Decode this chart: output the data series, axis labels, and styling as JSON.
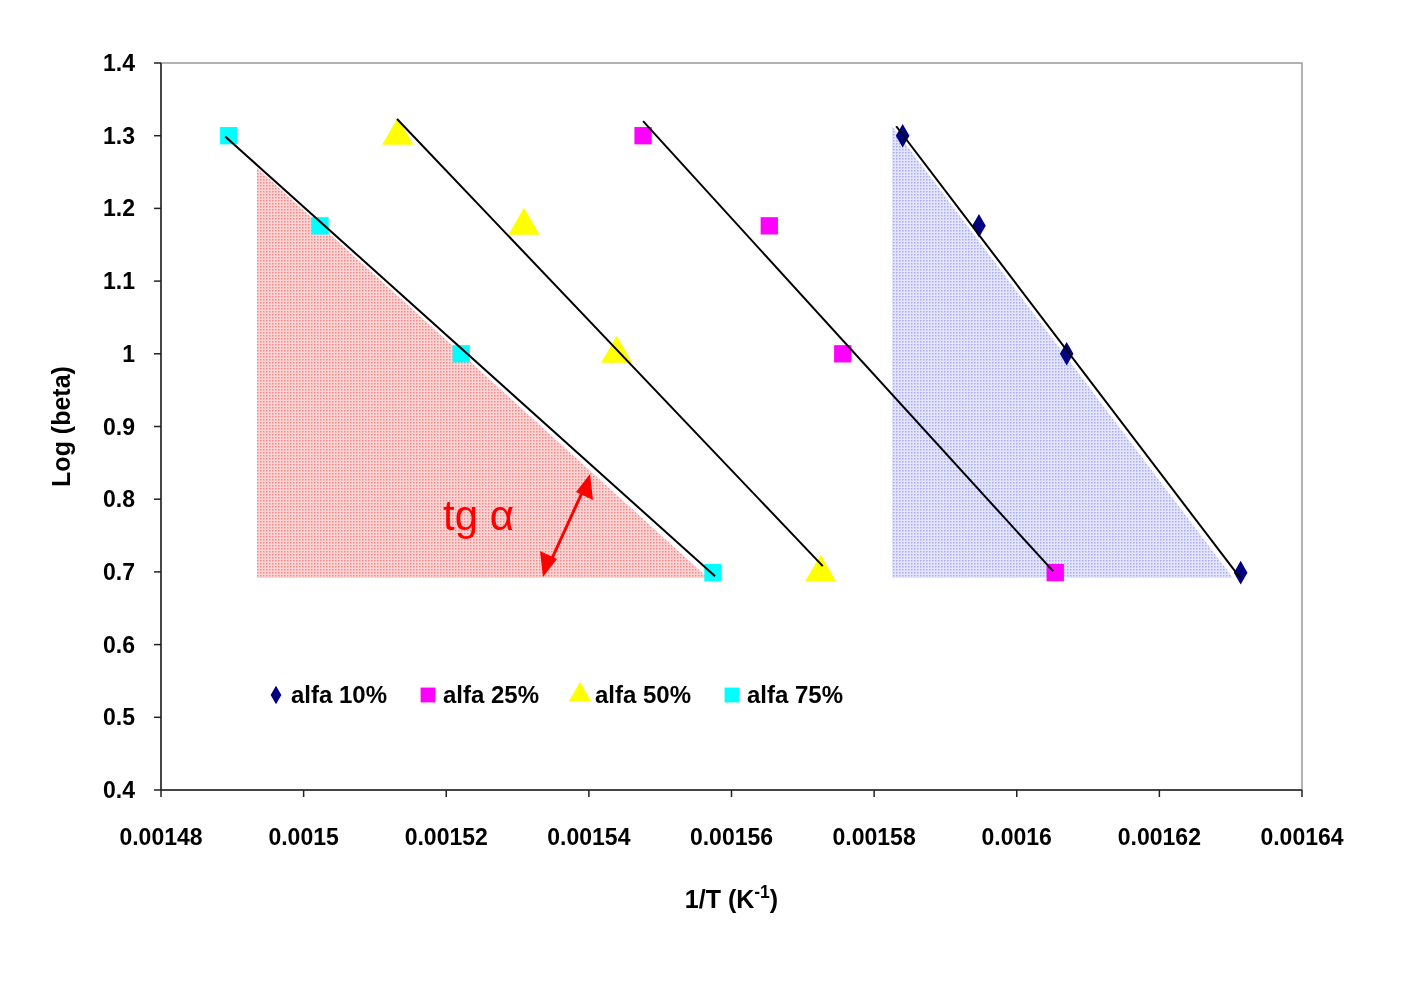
{
  "chart_data": {
    "type": "scatter",
    "xlabel": "1/T (K$^{-1}$)",
    "ylabel": "Log (beta)",
    "xlim": [
      0.00148,
      0.00164
    ],
    "xticks": [
      0.00148,
      0.0015,
      0.00152,
      0.00154,
      0.00156,
      0.00158,
      0.0016,
      0.00162,
      0.00164
    ],
    "ylim": [
      0.4,
      1.4
    ],
    "yticks": [
      0.4,
      0.5,
      0.6,
      0.7,
      0.8,
      0.9,
      1,
      1.1,
      1.2,
      1.3,
      1.4
    ],
    "grid": false,
    "legend": "bottom left",
    "annotations": [
      "tg α"
    ],
    "series": [
      {
        "name": "alfa 10%",
        "color": "#000080",
        "marker": "diamond",
        "x": [
          0.001584,
          0.0015947,
          0.001607,
          0.0016314
        ],
        "values": [
          1.3,
          1.176,
          1,
          0.699
        ]
      },
      {
        "name": "alfa 25%",
        "color": "#ff00ff",
        "marker": "square",
        "x": [
          0.0015476,
          0.0015653,
          0.0015756,
          0.0016054
        ],
        "values": [
          1.3,
          1.176,
          1,
          0.699
        ]
      },
      {
        "name": "alfa 50%",
        "color": "#ffff00",
        "marker": "triangle",
        "x": [
          0.0015132,
          0.0015309,
          0.0015439,
          0.0015725
        ],
        "values": [
          1.3,
          1.176,
          1,
          0.699
        ]
      },
      {
        "name": "alfa 75%",
        "color": "#00ffff",
        "marker": "square",
        "x": [
          0.0014895,
          0.0015023,
          0.0015221,
          0.0015574
        ],
        "values": [
          1.3,
          1.176,
          1,
          0.699
        ]
      },
      {
        "type": "line",
        "color": "#000000",
        "x": [
          0.001489,
          0.0015577
        ],
        "values": [
          1.299,
          0.694
        ]
      },
      {
        "type": "line",
        "color": "#000000",
        "x": [
          0.0015131,
          0.0015728
        ],
        "values": [
          1.323,
          0.708
        ]
      },
      {
        "type": "line",
        "color": "#000000",
        "x": [
          0.0015476,
          0.0016051
        ],
        "values": [
          1.32,
          0.701
        ]
      },
      {
        "type": "line",
        "color": "#000000",
        "x": [
          0.0015831,
          0.0016313
        ],
        "values": [
          1.313,
          0.692
        ]
      }
    ]
  }
}
